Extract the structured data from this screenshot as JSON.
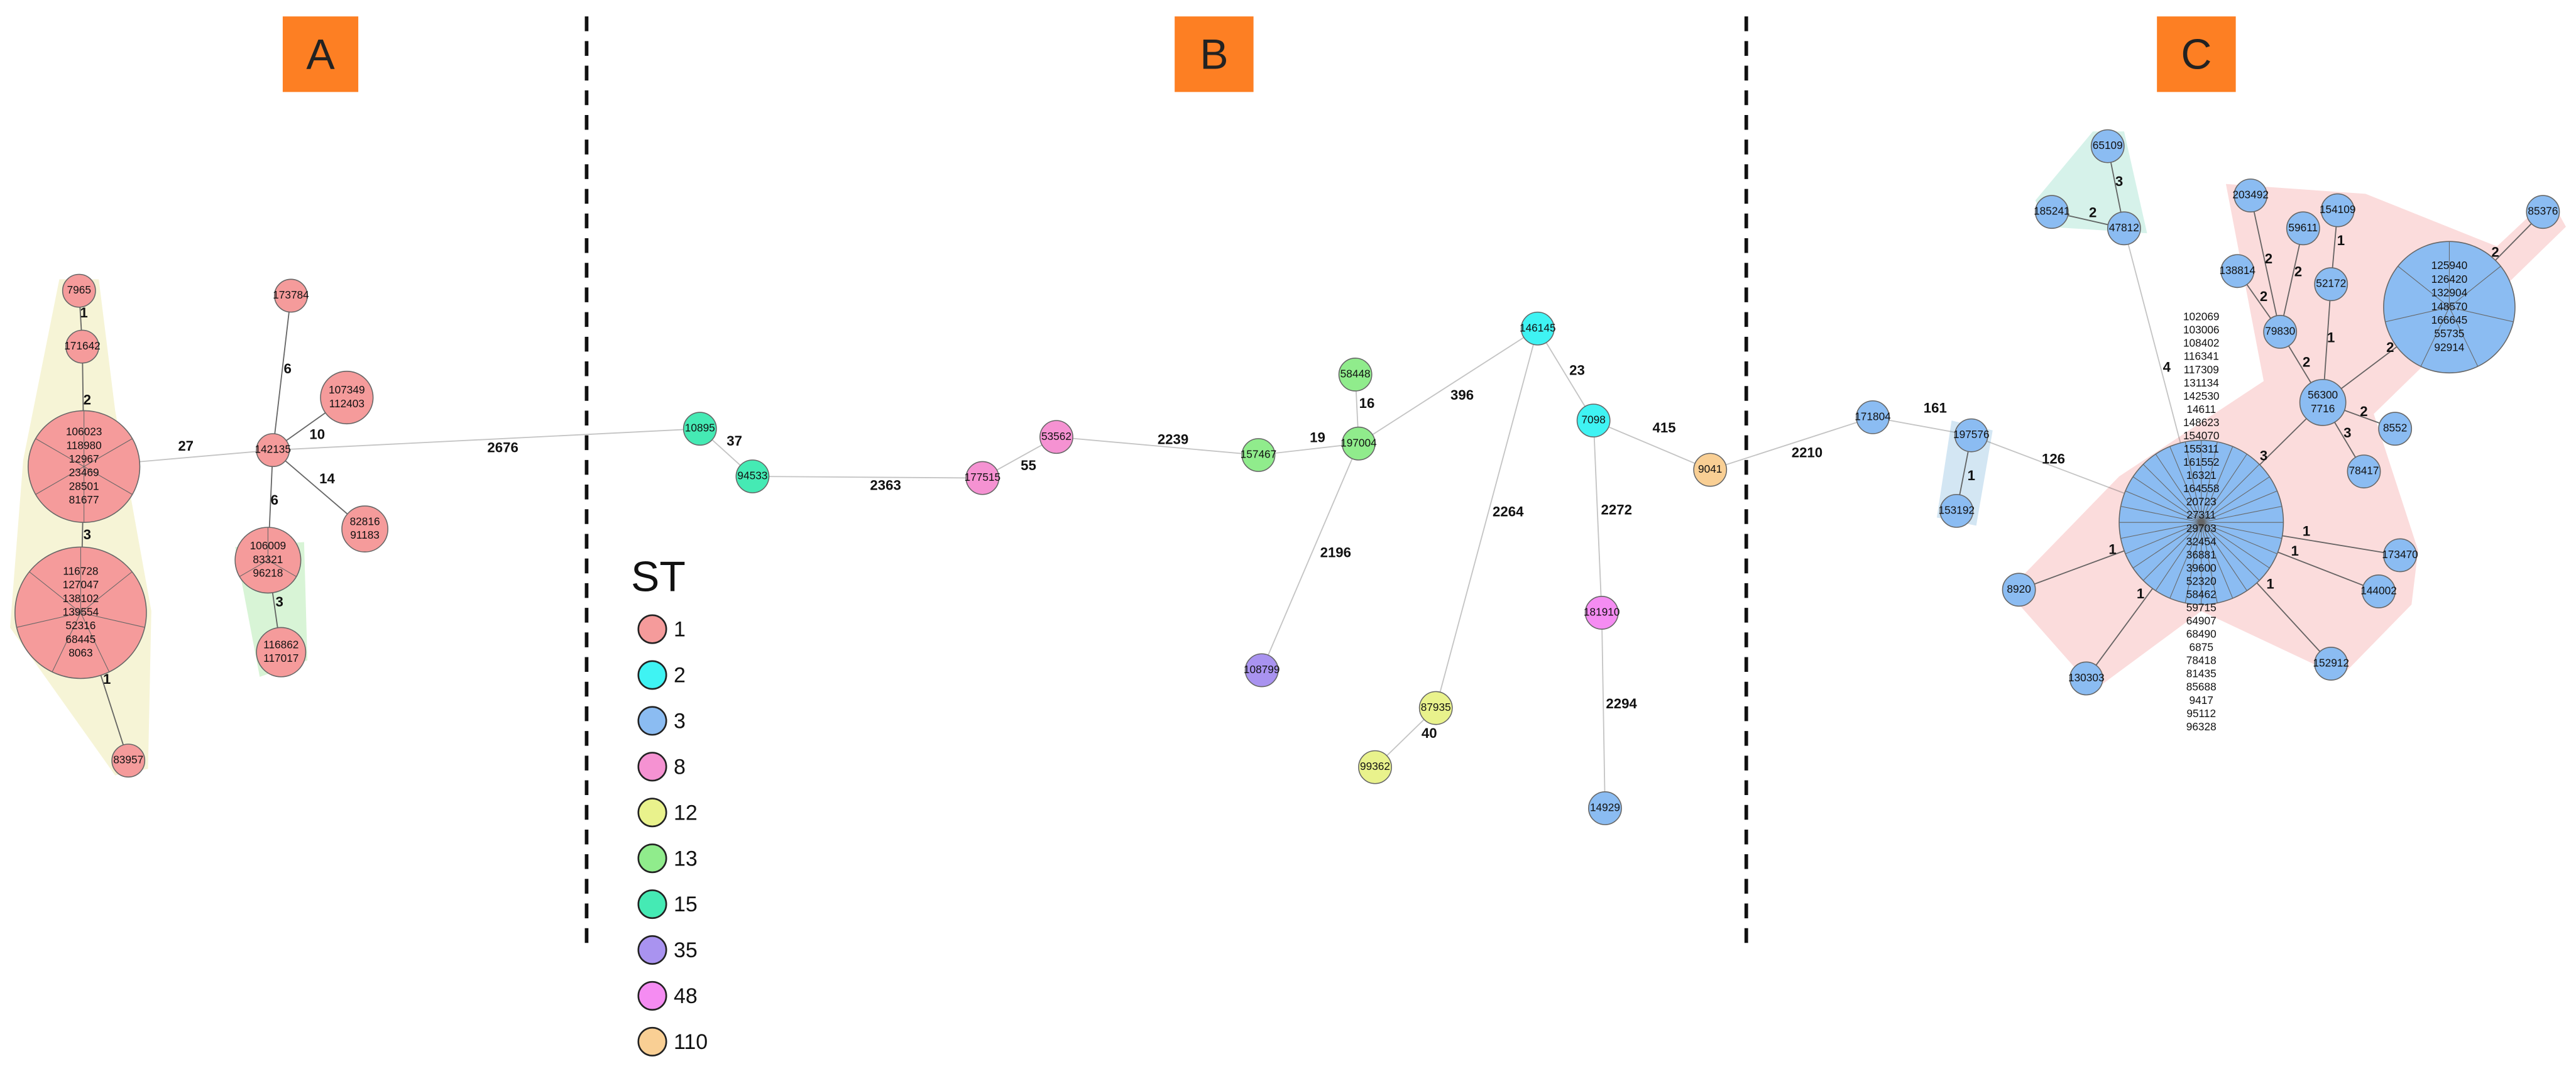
{
  "panels": [
    "A",
    "B",
    "C"
  ],
  "legend": {
    "title": "ST",
    "items": [
      {
        "label": "1",
        "color": "#f59b9b"
      },
      {
        "label": "2",
        "color": "#3ff3f3"
      },
      {
        "label": "3",
        "color": "#8bbcf2"
      },
      {
        "label": "8",
        "color": "#f592d2"
      },
      {
        "label": "12",
        "color": "#e9f28c"
      },
      {
        "label": "13",
        "color": "#90ec8c"
      },
      {
        "label": "15",
        "color": "#45eab4"
      },
      {
        "label": "35",
        "color": "#a993f0"
      },
      {
        "label": "48",
        "color": "#f58cf2"
      },
      {
        "label": "110",
        "color": "#f9cf94"
      }
    ]
  },
  "nodes": [
    {
      "ids": [
        "7965"
      ],
      "color": "#f59b9b"
    },
    {
      "ids": [
        "171642"
      ],
      "color": "#f59b9b"
    },
    {
      "ids": [
        "106023",
        "118980",
        "12967",
        "23469",
        "28501",
        "81677"
      ],
      "color": "#f59b9b"
    },
    {
      "ids": [
        "116728",
        "127047",
        "138102",
        "139554",
        "52316",
        "68445",
        "8063"
      ],
      "color": "#f59b9b"
    },
    {
      "ids": [
        "83957"
      ],
      "color": "#f59b9b"
    },
    {
      "ids": [
        "173784"
      ],
      "color": "#f59b9b"
    },
    {
      "ids": [
        "142135"
      ],
      "color": "#f59b9b"
    },
    {
      "ids": [
        "107349",
        "112403"
      ],
      "color": "#f59b9b"
    },
    {
      "ids": [
        "82816",
        "91183"
      ],
      "color": "#f59b9b"
    },
    {
      "ids": [
        "106009",
        "83321",
        "96218"
      ],
      "color": "#f59b9b"
    },
    {
      "ids": [
        "116862",
        "117017"
      ],
      "color": "#f59b9b"
    },
    {
      "ids": [
        "10895"
      ],
      "color": "#45eab4"
    },
    {
      "ids": [
        "94533"
      ],
      "color": "#45eab4"
    },
    {
      "ids": [
        "177515"
      ],
      "color": "#f592d2"
    },
    {
      "ids": [
        "53562"
      ],
      "color": "#f592d2"
    },
    {
      "ids": [
        "157467"
      ],
      "color": "#90ec8c"
    },
    {
      "ids": [
        "197004"
      ],
      "color": "#90ec8c"
    },
    {
      "ids": [
        "58448"
      ],
      "color": "#90ec8c"
    },
    {
      "ids": [
        "146145"
      ],
      "color": "#3ff3f3"
    },
    {
      "ids": [
        "7098"
      ],
      "color": "#3ff3f3"
    },
    {
      "ids": [
        "9041"
      ],
      "color": "#f9cf94"
    },
    {
      "ids": [
        "108799"
      ],
      "color": "#a993f0"
    },
    {
      "ids": [
        "87935"
      ],
      "color": "#e9f28c"
    },
    {
      "ids": [
        "99362"
      ],
      "color": "#e9f28c"
    },
    {
      "ids": [
        "181910"
      ],
      "color": "#f58cf2"
    },
    {
      "ids": [
        "14929"
      ],
      "color": "#8bbcf2"
    },
    {
      "ids": [
        "171804"
      ],
      "color": "#8bbcf2"
    },
    {
      "ids": [
        "197576"
      ],
      "color": "#8bbcf2"
    },
    {
      "ids": [
        "153192"
      ],
      "color": "#8bbcf2"
    },
    {
      "ids": [
        "102069",
        "103006",
        "108402",
        "116341",
        "117309",
        "131134",
        "142530",
        "14611",
        "148623",
        "154070",
        "155311",
        "161552",
        "16321",
        "164558",
        "20723",
        "27311",
        "29703",
        "32454",
        "36881",
        "39600",
        "52320",
        "58462",
        "59715",
        "64907",
        "68490",
        "6875",
        "78418",
        "81435",
        "85688",
        "9417",
        "95112",
        "96328"
      ],
      "color": "#8bbcf2"
    },
    {
      "ids": [
        "65109"
      ],
      "color": "#8bbcf2"
    },
    {
      "ids": [
        "185241"
      ],
      "color": "#8bbcf2"
    },
    {
      "ids": [
        "47812"
      ],
      "color": "#8bbcf2"
    },
    {
      "ids": [
        "203492"
      ],
      "color": "#8bbcf2"
    },
    {
      "ids": [
        "59611"
      ],
      "color": "#8bbcf2"
    },
    {
      "ids": [
        "154109"
      ],
      "color": "#8bbcf2"
    },
    {
      "ids": [
        "138814"
      ],
      "color": "#8bbcf2"
    },
    {
      "ids": [
        "52172"
      ],
      "color": "#8bbcf2"
    },
    {
      "ids": [
        "79830"
      ],
      "color": "#8bbcf2"
    },
    {
      "ids": [
        "56300",
        "7716"
      ],
      "color": "#8bbcf2"
    },
    {
      "ids": [
        "125940",
        "126420",
        "132904",
        "148570",
        "166645",
        "55735",
        "92914"
      ],
      "color": "#8bbcf2"
    },
    {
      "ids": [
        "85376"
      ],
      "color": "#8bbcf2"
    },
    {
      "ids": [
        "8552"
      ],
      "color": "#8bbcf2"
    },
    {
      "ids": [
        "78417"
      ],
      "color": "#8bbcf2"
    },
    {
      "ids": [
        "173470"
      ],
      "color": "#8bbcf2"
    },
    {
      "ids": [
        "144002"
      ],
      "color": "#8bbcf2"
    },
    {
      "ids": [
        "152912"
      ],
      "color": "#8bbcf2"
    },
    {
      "ids": [
        "130303"
      ],
      "color": "#8bbcf2"
    },
    {
      "ids": [
        "8920"
      ],
      "color": "#8bbcf2"
    }
  ],
  "edges": [
    {
      "from": 0,
      "to": 1,
      "label": "1"
    },
    {
      "from": 1,
      "to": 2,
      "label": "2"
    },
    {
      "from": 2,
      "to": 3,
      "label": "3"
    },
    {
      "from": 3,
      "to": 4,
      "label": "1"
    },
    {
      "from": 2,
      "to": 6,
      "label": "27"
    },
    {
      "from": 5,
      "to": 6,
      "label": "6"
    },
    {
      "from": 6,
      "to": 7,
      "label": "10"
    },
    {
      "from": 6,
      "to": 8,
      "label": "14"
    },
    {
      "from": 6,
      "to": 9,
      "label": "6"
    },
    {
      "from": 9,
      "to": 10,
      "label": "3"
    },
    {
      "from": 6,
      "to": 11,
      "label": "2676"
    },
    {
      "from": 11,
      "to": 12,
      "label": "37"
    },
    {
      "from": 12,
      "to": 13,
      "label": "2363"
    },
    {
      "from": 13,
      "to": 14,
      "label": "55"
    },
    {
      "from": 14,
      "to": 15,
      "label": "2239"
    },
    {
      "from": 15,
      "to": 16,
      "label": "19"
    },
    {
      "from": 16,
      "to": 17,
      "label": "16"
    },
    {
      "from": 16,
      "to": 18,
      "label": "396"
    },
    {
      "from": 18,
      "to": 19,
      "label": "23"
    },
    {
      "from": 19,
      "to": 20,
      "label": "415"
    },
    {
      "from": 16,
      "to": 21,
      "label": "2196"
    },
    {
      "from": 18,
      "to": 22,
      "label": "2264"
    },
    {
      "from": 22,
      "to": 23,
      "label": "40"
    },
    {
      "from": 19,
      "to": 24,
      "label": "2272"
    },
    {
      "from": 24,
      "to": 25,
      "label": "2294"
    },
    {
      "from": 20,
      "to": 26,
      "label": "2210"
    },
    {
      "from": 26,
      "to": 27,
      "label": "161"
    },
    {
      "from": 27,
      "to": 28,
      "label": "1"
    },
    {
      "from": 27,
      "to": 29,
      "label": "126"
    },
    {
      "from": 29,
      "to": 32,
      "label": "4"
    },
    {
      "from": 30,
      "to": 32,
      "label": "3"
    },
    {
      "from": 31,
      "to": 32,
      "label": "2"
    },
    {
      "from": 29,
      "to": 39,
      "label": "3"
    },
    {
      "from": 39,
      "to": 38,
      "label": "2"
    },
    {
      "from": 38,
      "to": 36,
      "label": "2"
    },
    {
      "from": 38,
      "to": 33,
      "label": "2"
    },
    {
      "from": 38,
      "to": 34,
      "label": "2"
    },
    {
      "from": 39,
      "to": 37,
      "label": "1"
    },
    {
      "from": 37,
      "to": 35,
      "label": "1"
    },
    {
      "from": 39,
      "to": 40,
      "label": "2"
    },
    {
      "from": 40,
      "to": 41,
      "label": "2"
    },
    {
      "from": 39,
      "to": 42,
      "label": "2"
    },
    {
      "from": 39,
      "to": 43,
      "label": "3"
    },
    {
      "from": 29,
      "to": 44,
      "label": "1"
    },
    {
      "from": 29,
      "to": 45,
      "label": "1"
    },
    {
      "from": 29,
      "to": 46,
      "label": "1"
    },
    {
      "from": 29,
      "to": 47,
      "label": "1"
    },
    {
      "from": 29,
      "to": 48,
      "label": "1"
    }
  ]
}
